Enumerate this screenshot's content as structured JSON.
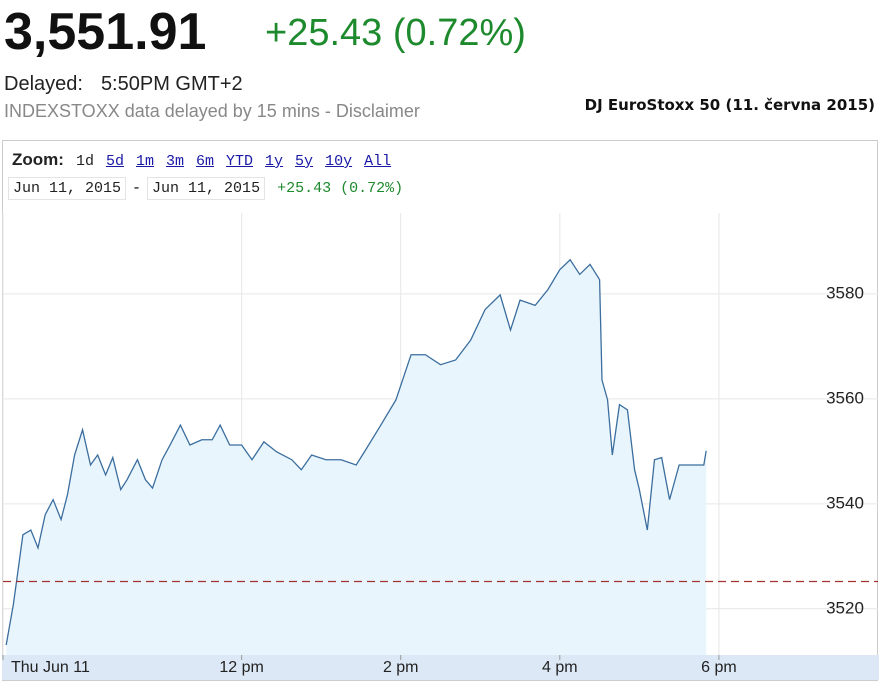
{
  "header": {
    "price": "3,551.91",
    "change": "+25.43 (0.72%)",
    "delayed_label": "Delayed:",
    "delayed_time": "5:50PM GMT+2",
    "disclaimer": "INDEXSTOXX data delayed by 15 mins - Disclaimer",
    "caption": "DJ EuroStoxx 50 (11. června 2015)"
  },
  "zoom": {
    "label": "Zoom:",
    "options": [
      "1d",
      "5d",
      "1m",
      "3m",
      "6m",
      "YTD",
      "1y",
      "5y",
      "10y",
      "All"
    ],
    "selected": "1d"
  },
  "range": {
    "from": "Jun 11, 2015",
    "separator": "-",
    "to": "Jun 11, 2015",
    "change": "+25.43 (0.72%)"
  },
  "chart_data": {
    "type": "area",
    "color": "#3b6e9e",
    "fill": "#e9f5fd",
    "reference_line": 3525.2,
    "reference_color": "#a33333",
    "grid": true,
    "x": [
      9.04,
      9.13,
      9.19,
      9.25,
      9.35,
      9.44,
      9.53,
      9.63,
      9.73,
      9.81,
      9.9,
      10,
      10.1,
      10.19,
      10.29,
      10.38,
      10.48,
      10.56,
      10.69,
      10.79,
      10.88,
      11,
      11.1,
      11.23,
      11.35,
      11.5,
      11.63,
      11.73,
      11.85,
      12,
      12.13,
      12.28,
      12.44,
      12.63,
      12.75,
      12.88,
      13.06,
      13.25,
      13.44,
      13.56,
      13.75,
      13.94,
      14.13,
      14.31,
      14.5,
      14.69,
      14.88,
      15.06,
      15.25,
      15.38,
      15.5,
      15.69,
      15.85,
      16,
      16.13,
      16.25,
      16.38,
      16.5,
      16.53,
      16.6,
      16.66,
      16.75,
      16.85,
      16.94,
      17,
      17.1,
      17.19,
      17.28,
      17.38,
      17.5,
      17.69,
      17.81,
      17.84
    ],
    "values": [
      3513.1,
      3520.8,
      3527.4,
      3534.1,
      3535.0,
      3531.6,
      3537.9,
      3540.8,
      3537.0,
      3541.7,
      3549.3,
      3554.1,
      3547.4,
      3549.3,
      3545.5,
      3548.8,
      3542.7,
      3544.6,
      3548.4,
      3544.6,
      3543.0,
      3548.4,
      3551.2,
      3555.0,
      3551.2,
      3552.2,
      3552.2,
      3555.0,
      3551.2,
      3551.2,
      3548.4,
      3551.8,
      3549.9,
      3548.4,
      3546.5,
      3549.3,
      3548.4,
      3548.4,
      3547.4,
      3550.3,
      3555.0,
      3559.8,
      3568.4,
      3568.4,
      3566.5,
      3567.4,
      3571.2,
      3577.0,
      3579.8,
      3573.1,
      3578.8,
      3577.8,
      3580.8,
      3584.6,
      3586.5,
      3583.7,
      3585.6,
      3582.7,
      3563.6,
      3559.8,
      3549.3,
      3558.9,
      3557.9,
      3546.5,
      3542.7,
      3535.0,
      3548.4,
      3548.8,
      3540.8,
      3547.4,
      3547.4,
      3547.4,
      3550.1
    ],
    "xlim": [
      9,
      20
    ],
    "xticks": [
      {
        "value": 9,
        "label": "Thu Jun 11"
      },
      {
        "value": 12,
        "label": "12 pm"
      },
      {
        "value": 14,
        "label": "2 pm"
      },
      {
        "value": 16,
        "label": "4 pm"
      },
      {
        "value": 18,
        "label": "6 pm"
      }
    ],
    "ylim": [
      3511.2,
      3595.4
    ],
    "yticks": [
      3520,
      3540,
      3560,
      3580
    ]
  }
}
